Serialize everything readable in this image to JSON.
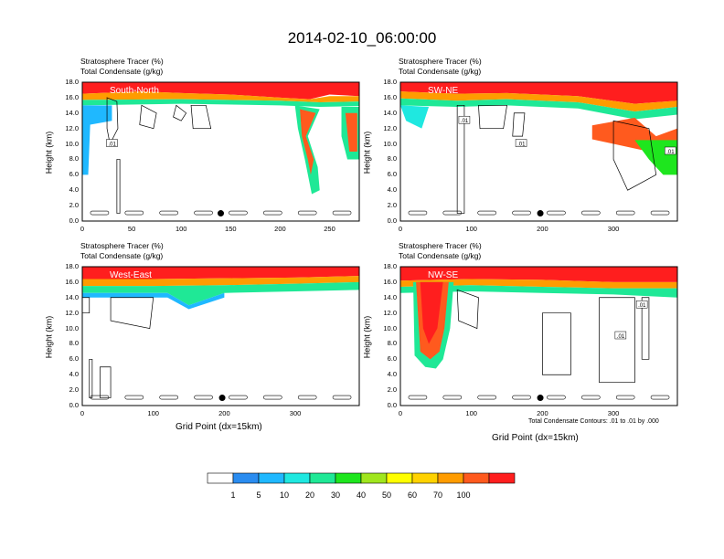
{
  "title": "2014-02-10_06:00:00",
  "colors": {
    "levels": [
      "#ffffff",
      "#2a8cf0",
      "#1fb8ff",
      "#1fe8e0",
      "#1fe896",
      "#1ee61e",
      "#a0e61e",
      "#ffff00",
      "#ffd200",
      "#ff9c00",
      "#ff5a1e",
      "#ff1e1e"
    ],
    "contour": "#000000"
  },
  "legend": {
    "labels": [
      "1",
      "5",
      "10",
      "20",
      "30",
      "40",
      "50",
      "60",
      "70",
      "100"
    ]
  },
  "footnote": "Total Condensate Contours: .01 to .01 by .000",
  "chart_data": [
    {
      "type": "heatmap",
      "subtitle_1": "Stratosphere Tracer   (%)",
      "subtitle_2": "Total Condensate   (g/kg)",
      "cross_section": "South-North",
      "ylabel": "Height (km)",
      "xlabel": "",
      "xlim": [
        0,
        280
      ],
      "ylim": [
        0,
        18
      ],
      "x_ticks": [
        "0",
        "50",
        "100",
        "150",
        "200",
        "250"
      ],
      "y_ticks": [
        "0.0",
        "2.0",
        "4.0",
        "6.0",
        "8.0",
        "10.0",
        "12.0",
        "14.0",
        "16.0",
        "18.0"
      ],
      "marker_x": 140,
      "contour_labels": [
        ".01"
      ]
    },
    {
      "type": "heatmap",
      "subtitle_1": "Stratosphere Tracer   (%)",
      "subtitle_2": "Total Condensate   (g/kg)",
      "cross_section": "SW-NE",
      "ylabel": "Height (km)",
      "xlabel": "",
      "xlim": [
        0,
        390
      ],
      "ylim": [
        0,
        18
      ],
      "x_ticks": [
        "0",
        "100",
        "200",
        "300"
      ],
      "y_ticks": [
        "0.0",
        "2.0",
        "4.0",
        "6.0",
        "8.0",
        "10.0",
        "12.0",
        "14.0",
        "16.0",
        "18.0"
      ],
      "marker_x": 197,
      "contour_labels": [
        ".01",
        ".01",
        ".01"
      ]
    },
    {
      "type": "heatmap",
      "subtitle_1": "Stratosphere Tracer   (%)",
      "subtitle_2": "Total Condensate   (g/kg)",
      "cross_section": "West-East",
      "ylabel": "Height (km)",
      "xlabel": "Grid Point (dx=15km)",
      "xlim": [
        0,
        390
      ],
      "ylim": [
        0,
        18
      ],
      "x_ticks": [
        "0",
        "100",
        "200",
        "300"
      ],
      "y_ticks": [
        "0.0",
        "2.0",
        "4.0",
        "6.0",
        "8.0",
        "10.0",
        "12.0",
        "14.0",
        "16.0",
        "18.0"
      ],
      "marker_x": 197,
      "contour_labels": []
    },
    {
      "type": "heatmap",
      "subtitle_1": "Stratosphere Tracer   (%)",
      "subtitle_2": "Total Condensate   (g/kg)",
      "cross_section": "NW-SE",
      "ylabel": "Height (km)",
      "xlabel": "Grid Point (dx=15km)",
      "xlim": [
        0,
        390
      ],
      "ylim": [
        0,
        18
      ],
      "x_ticks": [
        "0",
        "100",
        "200",
        "300"
      ],
      "y_ticks": [
        "0.0",
        "2.0",
        "4.0",
        "6.0",
        "8.0",
        "10.0",
        "12.0",
        "14.0",
        "16.0",
        "18.0"
      ],
      "marker_x": 197,
      "contour_labels": [
        ".01",
        ".01"
      ]
    }
  ]
}
